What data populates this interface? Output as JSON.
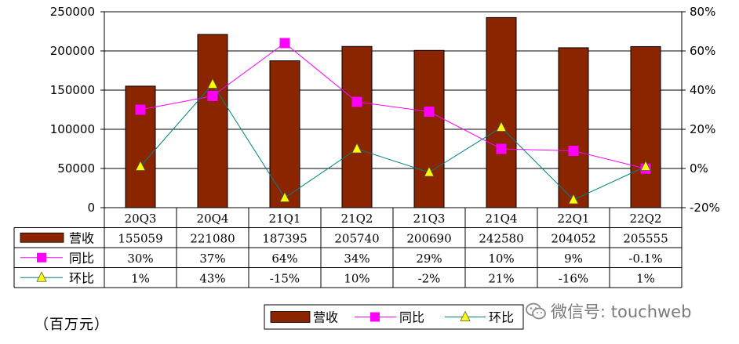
{
  "chart_data": {
    "type": "bar+line",
    "categories": [
      "20Q3",
      "20Q4",
      "21Q1",
      "21Q2",
      "21Q3",
      "21Q4",
      "22Q1",
      "22Q2"
    ],
    "series": [
      {
        "name": "营收",
        "type": "bar",
        "axis": "left",
        "color": "#8B2500",
        "values": [
          155059,
          221080,
          187395,
          205740,
          200690,
          242580,
          204052,
          205555
        ]
      },
      {
        "name": "同比",
        "type": "line",
        "axis": "right",
        "color": "#FF00FF",
        "marker": "square",
        "values": [
          30,
          37,
          64,
          34,
          29,
          10,
          9,
          -0.1
        ]
      },
      {
        "name": "环比",
        "type": "line",
        "axis": "right",
        "color": "#008080",
        "marker": "triangle",
        "marker_color": "#FFFF00",
        "values": [
          1,
          43,
          -15,
          10,
          -2,
          21,
          -16,
          1
        ]
      }
    ],
    "ylim_left": [
      0,
      250000
    ],
    "yticks_left": [
      "250000",
      "200000",
      "150000",
      "100000",
      "50000",
      "0"
    ],
    "ylim_right": [
      -20,
      80
    ],
    "yticks_right": [
      "80%",
      "60%",
      "40%",
      "20%",
      "0%",
      "-20%"
    ],
    "table": [
      {
        "label": "营收",
        "cells": [
          "155059",
          "221080",
          "187395",
          "205740",
          "200690",
          "242580",
          "204052",
          "205555"
        ]
      },
      {
        "label": "同比",
        "cells": [
          "30%",
          "37%",
          "64%",
          "34%",
          "29%",
          "10%",
          "9%",
          "-0.1%"
        ]
      },
      {
        "label": "环比",
        "cells": [
          "1%",
          "43%",
          "-15%",
          "10%",
          "-2%",
          "21%",
          "-16%",
          "1%"
        ]
      }
    ],
    "legend": [
      "营收",
      "同比",
      "环比"
    ],
    "legend_position": "bottom"
  },
  "unit_label": "（百万元）",
  "watermark": "微信号: touchweb"
}
